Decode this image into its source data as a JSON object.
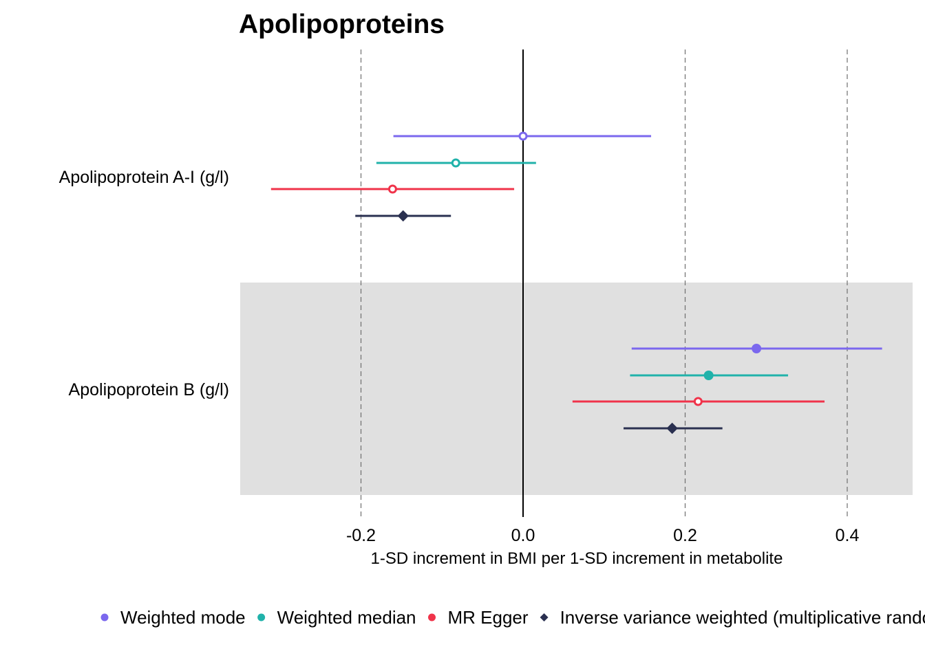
{
  "chart_data": {
    "type": "scatter",
    "subtype": "forest-plot",
    "title": "Apolipoproteins",
    "xlabel": "1-SD increment in BMI per 1-SD increment in metabolite",
    "ylabel": "",
    "xlim": [
      -0.35,
      0.48
    ],
    "xticks": [
      -0.2,
      0.0,
      0.2,
      0.4
    ],
    "xtick_labels": [
      "-0.2",
      "0.0",
      "0.2",
      "0.4"
    ],
    "grid": "dashed vertical lines at major x ticks",
    "reference_line": 0,
    "shaded_rows": [
      "Apolipoprotein B (g/l)"
    ],
    "legend_position": "bottom",
    "categories": [
      "Apolipoprotein A-I (g/l)",
      "Apolipoprotein B (g/l)"
    ],
    "series": [
      {
        "name": "Weighted mode",
        "color": "#7b68ee",
        "marker": "circle",
        "estimates": [
          0.0,
          0.288
        ],
        "ci_lower": [
          -0.16,
          0.134
        ],
        "ci_upper": [
          0.158,
          0.443
        ],
        "filled": [
          false,
          true
        ]
      },
      {
        "name": "Weighted median",
        "color": "#20b2aa",
        "marker": "circle",
        "estimates": [
          -0.083,
          0.229
        ],
        "ci_lower": [
          -0.181,
          0.132
        ],
        "ci_upper": [
          0.016,
          0.327
        ],
        "filled": [
          false,
          true
        ]
      },
      {
        "name": "MR Egger",
        "color": "#f0334a",
        "marker": "circle",
        "estimates": [
          -0.161,
          0.216
        ],
        "ci_lower": [
          -0.311,
          0.061
        ],
        "ci_upper": [
          -0.011,
          0.372
        ],
        "filled": [
          false,
          false
        ]
      },
      {
        "name": "Inverse variance weighted (multiplicative random effects)",
        "color": "#2a3050",
        "marker": "diamond",
        "estimates": [
          -0.148,
          0.184
        ],
        "ci_lower": [
          -0.207,
          0.124
        ],
        "ci_upper": [
          -0.089,
          0.246
        ],
        "filled": [
          true,
          true
        ]
      }
    ]
  }
}
